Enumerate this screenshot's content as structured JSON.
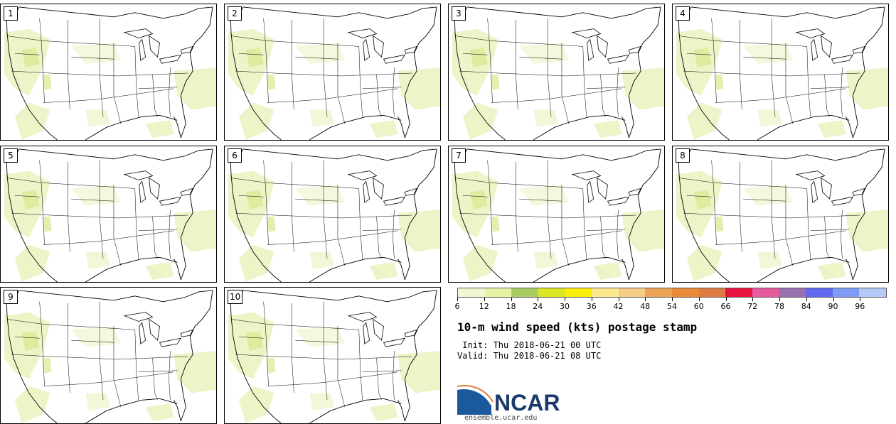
{
  "panels": [
    {
      "label": "1"
    },
    {
      "label": "2"
    },
    {
      "label": "3"
    },
    {
      "label": "4"
    },
    {
      "label": "5"
    },
    {
      "label": "6"
    },
    {
      "label": "7"
    },
    {
      "label": "8"
    },
    {
      "label": "9"
    },
    {
      "label": "10"
    }
  ],
  "colorbar": {
    "colors": [
      "#f2f5d3",
      "#e6f2a4",
      "#a9cd62",
      "#dde625",
      "#fbee0b",
      "#fde98b",
      "#f5cc86",
      "#eba456",
      "#e88c3b",
      "#dc7c44",
      "#e8123f",
      "#e55b9d",
      "#9771ad",
      "#6267f2",
      "#7f9bf8",
      "#b4c9f7"
    ],
    "tick_labels": [
      "6",
      "12",
      "18",
      "24",
      "30",
      "36",
      "42",
      "48",
      "54",
      "60",
      "66",
      "72",
      "78",
      "84",
      "90",
      "96"
    ]
  },
  "title": "10-m wind speed (kts) postage stamp",
  "init": " Init: Thu 2018-06-21 00 UTC",
  "valid": "Valid: Thu 2018-06-21 08 UTC",
  "logo": {
    "text": "NCAR",
    "url": "ensemble.ucar.edu",
    "colors": {
      "swoosh": "#1a5a9c",
      "text": "#1b3b6b"
    }
  }
}
